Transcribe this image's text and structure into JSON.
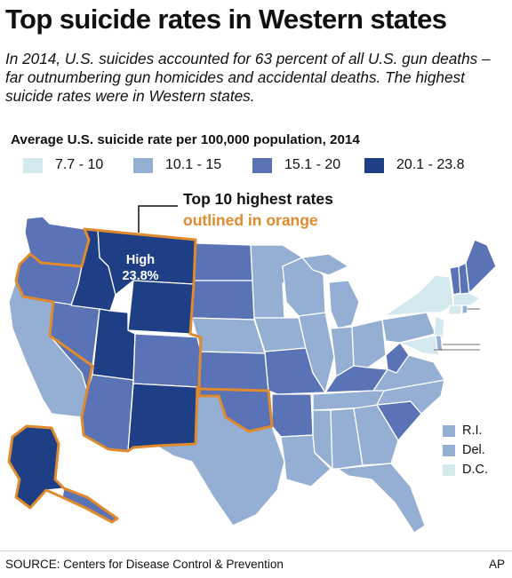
{
  "title": "Top suicide rates in Western states",
  "subtitle": "In 2014, U.S. suicides accounted for 63 percent of all U.S. gun deaths – far outnumbering gun homicides and accidental deaths. The highest suicide rates were in Western states.",
  "legend": {
    "title": "Average U.S. suicide rate per 100,000 population, 2014",
    "items": [
      {
        "label": "7.7 - 10",
        "color": "#d3e9ee"
      },
      {
        "label": "10.1 - 15",
        "color": "#95aed3"
      },
      {
        "label": "15.1 - 20",
        "color": "#5a72b6"
      },
      {
        "label": "20.1 - 23.8",
        "color": "#1e3f86"
      }
    ]
  },
  "callout": {
    "title": "Top 10 highest rates",
    "subtitle": "outlined in orange",
    "outline_color": "#e08a2e"
  },
  "high_label": {
    "line1": "High",
    "line2": "23.8%"
  },
  "small_states": [
    {
      "label": "R.I.",
      "color": "#95aed3"
    },
    {
      "label": "Del.",
      "color": "#95aed3"
    },
    {
      "label": "D.C.",
      "color": "#d3e9ee"
    }
  ],
  "source": "SOURCE: Centers for Disease Control & Prevention",
  "credit": "AP"
}
